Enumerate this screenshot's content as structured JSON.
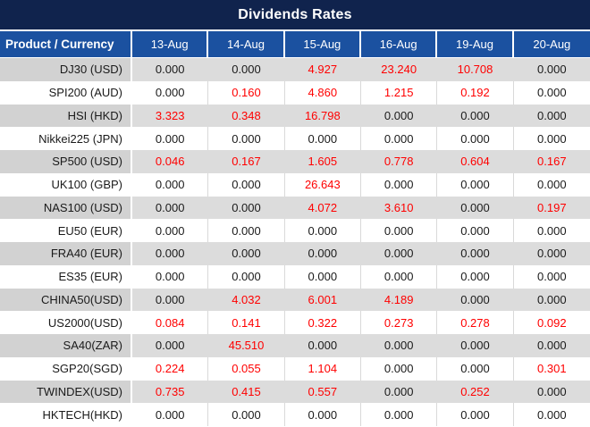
{
  "title": "Dividends Rates",
  "table": {
    "product_header": "Product / Currency",
    "date_headers": [
      "13-Aug",
      "14-Aug",
      "15-Aug",
      "16-Aug",
      "19-Aug",
      "20-Aug"
    ],
    "rows": [
      {
        "product": "DJ30 (USD)",
        "values": [
          "0.000",
          "0.000",
          "4.927",
          "23.240",
          "10.708",
          "0.000"
        ]
      },
      {
        "product": "SPI200 (AUD)",
        "values": [
          "0.000",
          "0.160",
          "4.860",
          "1.215",
          "0.192",
          "0.000"
        ]
      },
      {
        "product": "HSI (HKD)",
        "values": [
          "3.323",
          "0.348",
          "16.798",
          "0.000",
          "0.000",
          "0.000"
        ]
      },
      {
        "product": "Nikkei225 (JPN)",
        "values": [
          "0.000",
          "0.000",
          "0.000",
          "0.000",
          "0.000",
          "0.000"
        ]
      },
      {
        "product": "SP500 (USD)",
        "values": [
          "0.046",
          "0.167",
          "1.605",
          "0.778",
          "0.604",
          "0.167"
        ]
      },
      {
        "product": "UK100 (GBP)",
        "values": [
          "0.000",
          "0.000",
          "26.643",
          "0.000",
          "0.000",
          "0.000"
        ]
      },
      {
        "product": "NAS100 (USD)",
        "values": [
          "0.000",
          "0.000",
          "4.072",
          "3.610",
          "0.000",
          "0.197"
        ]
      },
      {
        "product": "EU50 (EUR)",
        "values": [
          "0.000",
          "0.000",
          "0.000",
          "0.000",
          "0.000",
          "0.000"
        ]
      },
      {
        "product": "FRA40 (EUR)",
        "values": [
          "0.000",
          "0.000",
          "0.000",
          "0.000",
          "0.000",
          "0.000"
        ]
      },
      {
        "product": "ES35 (EUR)",
        "values": [
          "0.000",
          "0.000",
          "0.000",
          "0.000",
          "0.000",
          "0.000"
        ]
      },
      {
        "product": "CHINA50(USD)",
        "values": [
          "0.000",
          "4.032",
          "6.001",
          "4.189",
          "0.000",
          "0.000"
        ]
      },
      {
        "product": "US2000(USD)",
        "values": [
          "0.084",
          "0.141",
          "0.322",
          "0.273",
          "0.278",
          "0.092"
        ]
      },
      {
        "product": "SA40(ZAR)",
        "values": [
          "0.000",
          "45.510",
          "0.000",
          "0.000",
          "0.000",
          "0.000"
        ]
      },
      {
        "product": "SGP20(SGD)",
        "values": [
          "0.224",
          "0.055",
          "1.104",
          "0.000",
          "0.000",
          "0.301"
        ]
      },
      {
        "product": "TWINDEX(USD)",
        "values": [
          "0.735",
          "0.415",
          "0.557",
          "0.000",
          "0.252",
          "0.000"
        ]
      },
      {
        "product": "HKTECH(HKD)",
        "values": [
          "0.000",
          "0.000",
          "0.000",
          "0.000",
          "0.000",
          "0.000"
        ]
      }
    ]
  },
  "colors": {
    "title_bg": "#10234d",
    "header_bg": "#1b51a0",
    "row_alt_bg": "#dcdcdc",
    "product_alt_bg": "#d2d2d2",
    "zero_value_text": "#1a1a1a",
    "nonzero_value_text": "#ff0000",
    "header_text": "#ffffff"
  },
  "chart_data": {
    "type": "table",
    "title": "Dividends Rates",
    "columns": [
      "Product / Currency",
      "13-Aug",
      "14-Aug",
      "15-Aug",
      "16-Aug",
      "19-Aug",
      "20-Aug"
    ],
    "rows": [
      [
        "DJ30 (USD)",
        0.0,
        0.0,
        4.927,
        23.24,
        10.708,
        0.0
      ],
      [
        "SPI200 (AUD)",
        0.0,
        0.16,
        4.86,
        1.215,
        0.192,
        0.0
      ],
      [
        "HSI (HKD)",
        3.323,
        0.348,
        16.798,
        0.0,
        0.0,
        0.0
      ],
      [
        "Nikkei225 (JPN)",
        0.0,
        0.0,
        0.0,
        0.0,
        0.0,
        0.0
      ],
      [
        "SP500 (USD)",
        0.046,
        0.167,
        1.605,
        0.778,
        0.604,
        0.167
      ],
      [
        "UK100 (GBP)",
        0.0,
        0.0,
        26.643,
        0.0,
        0.0,
        0.0
      ],
      [
        "NAS100 (USD)",
        0.0,
        0.0,
        4.072,
        3.61,
        0.0,
        0.197
      ],
      [
        "EU50 (EUR)",
        0.0,
        0.0,
        0.0,
        0.0,
        0.0,
        0.0
      ],
      [
        "FRA40 (EUR)",
        0.0,
        0.0,
        0.0,
        0.0,
        0.0,
        0.0
      ],
      [
        "ES35 (EUR)",
        0.0,
        0.0,
        0.0,
        0.0,
        0.0,
        0.0
      ],
      [
        "CHINA50(USD)",
        0.0,
        4.032,
        6.001,
        4.189,
        0.0,
        0.0
      ],
      [
        "US2000(USD)",
        0.084,
        0.141,
        0.322,
        0.273,
        0.278,
        0.092
      ],
      [
        "SA40(ZAR)",
        0.0,
        45.51,
        0.0,
        0.0,
        0.0,
        0.0
      ],
      [
        "SGP20(SGD)",
        0.224,
        0.055,
        1.104,
        0.0,
        0.0,
        0.301
      ],
      [
        "TWINDEX(USD)",
        0.735,
        0.415,
        0.557,
        0.0,
        0.252,
        0.0
      ],
      [
        "HKTECH(HKD)",
        0.0,
        0.0,
        0.0,
        0.0,
        0.0,
        0.0
      ]
    ],
    "notes": "Non-zero values rendered in red; zero values in black. Alternating gray/white row striping."
  }
}
